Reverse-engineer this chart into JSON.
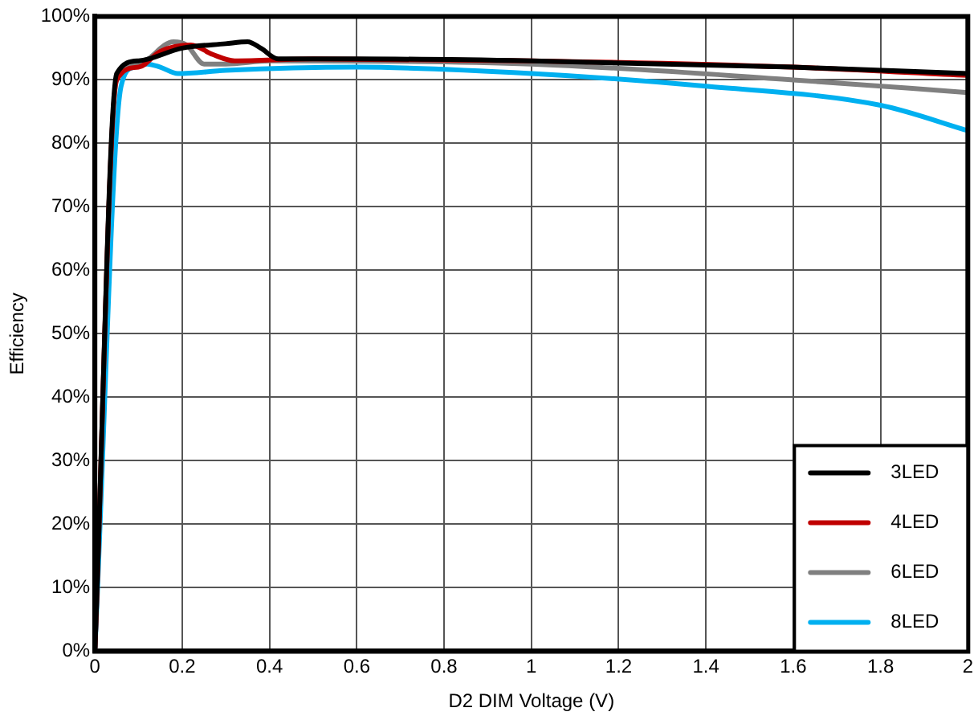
{
  "chart_data": {
    "type": "line",
    "xlabel": "D2 DIM Voltage (V)",
    "ylabel": "Efficiency",
    "xlim": [
      0,
      2
    ],
    "xticks": [
      0,
      0.2,
      0.4,
      0.6,
      0.8,
      1,
      1.2,
      1.4,
      1.6,
      1.8,
      2
    ],
    "ylim": [
      0,
      100
    ],
    "yticks": [
      {
        "value": 0,
        "label": "0%"
      },
      {
        "value": 10,
        "label": "10%"
      },
      {
        "value": 20,
        "label": "20%"
      },
      {
        "value": 30,
        "label": "30%"
      },
      {
        "value": 40,
        "label": "40%"
      },
      {
        "value": 50,
        "label": "50%"
      },
      {
        "value": 60,
        "label": "60%"
      },
      {
        "value": 70,
        "label": "70%"
      },
      {
        "value": 80,
        "label": "80%"
      },
      {
        "value": 90,
        "label": "90%"
      },
      {
        "value": 100,
        "label": "100%"
      }
    ],
    "grid": true,
    "legend": "bottom right",
    "marker": "none",
    "line_style": "solid",
    "series": [
      {
        "name": "3LED",
        "color": "#000000",
        "x": [
          0,
          0.05,
          0.1,
          0.2,
          0.3,
          0.35,
          0.38,
          0.42,
          0.6,
          1,
          1.6,
          2
        ],
        "values": [
          0,
          91,
          93,
          95,
          95.7,
          96,
          95,
          93.3,
          93.3,
          93,
          92,
          91
        ]
      },
      {
        "name": "4LED",
        "color": "#c00000",
        "x": [
          0,
          0.05,
          0.1,
          0.15,
          0.22,
          0.27,
          0.32,
          0.5,
          1,
          1.6,
          2
        ],
        "values": [
          0,
          90,
          92,
          94.5,
          95.5,
          94,
          93,
          93.3,
          93,
          92,
          90.7
        ]
      },
      {
        "name": "6LED",
        "color": "#808080",
        "x": [
          0,
          0.05,
          0.1,
          0.18,
          0.21,
          0.25,
          0.3,
          0.4,
          1,
          1.6,
          2
        ],
        "values": [
          0,
          90,
          92.5,
          96,
          95.5,
          92.5,
          92.5,
          93,
          92.5,
          90,
          88
        ]
      },
      {
        "name": "8LED",
        "color": "#00b0f0",
        "x": [
          0,
          0.06,
          0.09,
          0.12,
          0.15,
          0.19,
          0.3,
          0.6,
          1,
          1.4,
          1.8,
          2
        ],
        "values": [
          0,
          89,
          92,
          92.5,
          92,
          91,
          91.5,
          92,
          91,
          89,
          86,
          82
        ]
      }
    ]
  }
}
